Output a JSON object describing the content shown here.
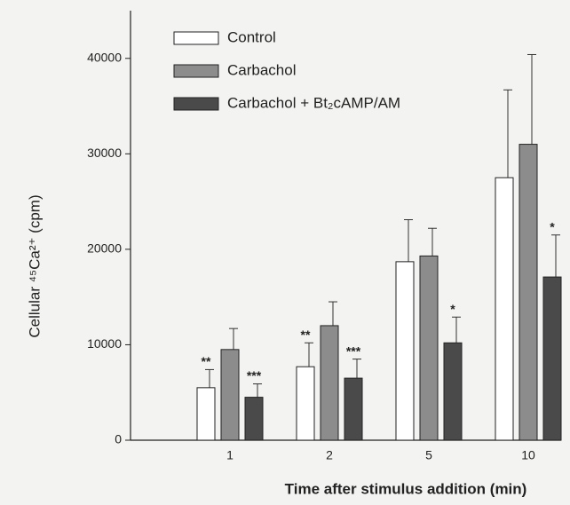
{
  "chart_data": {
    "type": "bar",
    "x_label": "Time after stimulus addition (min)",
    "y_label": "Cellular ⁴⁵Ca²⁺ (cpm)",
    "categories": [
      "1",
      "2",
      "5",
      "10"
    ],
    "series": [
      {
        "name": "Control",
        "color": "#ffffff",
        "values": [
          5500,
          7700,
          18700,
          27500
        ],
        "errors": [
          1900,
          2500,
          4400,
          9200
        ],
        "annotations": [
          "**",
          "**",
          null,
          null
        ]
      },
      {
        "name": "Carbachol",
        "color": "#8c8c8c",
        "values": [
          9500,
          12000,
          19300,
          31000
        ],
        "errors": [
          2200,
          2500,
          2900,
          9400
        ],
        "annotations": [
          null,
          null,
          null,
          null
        ]
      },
      {
        "name": "Carbachol + Bt₂cAMP/AM",
        "color": "#4a4a4a",
        "values": [
          4500,
          6500,
          10200,
          17100
        ],
        "errors": [
          1400,
          2000,
          2700,
          4400
        ],
        "annotations": [
          "***",
          "***",
          "*",
          "*"
        ]
      }
    ],
    "ylim": [
      0,
      45000
    ],
    "yticks": [
      0,
      10000,
      20000,
      30000,
      40000
    ],
    "grid": false,
    "legend": "top-left"
  }
}
